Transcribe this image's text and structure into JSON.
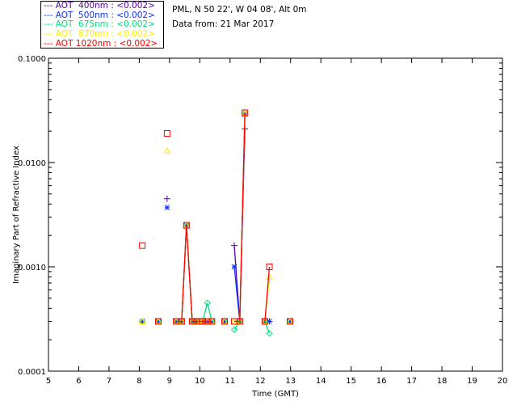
{
  "chart_data": {
    "type": "scatter",
    "title_lines": [
      "PML, N 50 22', W 04 08', Alt 0m",
      "Data from: 21 Mar 2017"
    ],
    "xlabel": "Time (GMT)",
    "ylabel": "Imaginary Part of Refractive Index",
    "xlim": [
      5,
      20
    ],
    "ylim": [
      0.0001,
      0.1
    ],
    "yscale": "log",
    "xticks": [
      "5",
      "6",
      "7",
      "8",
      "9",
      "10",
      "11",
      "12",
      "13",
      "14",
      "15",
      "16",
      "17",
      "18",
      "19",
      "20"
    ],
    "yticks": [
      "0.0001",
      "0.0010",
      "0.0100",
      "0.1000"
    ],
    "legend_placement": "top-left outside",
    "series": [
      {
        "name": "AOT  400nm : <0.002>",
        "color": "#5500aa",
        "marker": "plus",
        "points": [
          [
            8.1,
            0.0003
          ],
          [
            8.63,
            0.0003
          ],
          [
            8.92,
            0.0045
          ],
          [
            9.22,
            0.0003
          ],
          [
            9.4,
            0.0003
          ],
          [
            9.56,
            0.0025
          ],
          [
            9.75,
            0.0003
          ],
          [
            9.9,
            0.0003
          ],
          [
            10.0,
            0.0003
          ],
          [
            10.1,
            0.0003
          ],
          [
            10.25,
            0.0003
          ],
          [
            10.4,
            0.0003
          ],
          [
            10.82,
            0.0003
          ],
          [
            11.14,
            0.0016
          ],
          [
            11.32,
            0.0003
          ],
          [
            11.49,
            0.021
          ],
          [
            12.15,
            0.0003
          ],
          [
            12.3,
            0.0003
          ],
          [
            12.98,
            0.0003
          ]
        ]
      },
      {
        "name": "AOT  500nm : <0.002>",
        "color": "#1030ff",
        "marker": "star",
        "points": [
          [
            8.1,
            0.0003
          ],
          [
            8.63,
            0.0003
          ],
          [
            8.92,
            0.0037
          ],
          [
            9.22,
            0.0003
          ],
          [
            9.4,
            0.0003
          ],
          [
            9.56,
            0.0025
          ],
          [
            9.75,
            0.0003
          ],
          [
            9.9,
            0.0003
          ],
          [
            10.0,
            0.0003
          ],
          [
            10.1,
            0.0003
          ],
          [
            10.25,
            0.0003
          ],
          [
            10.4,
            0.0003
          ],
          [
            10.82,
            0.0003
          ],
          [
            11.14,
            0.001
          ],
          [
            11.32,
            0.0003
          ],
          [
            11.49,
            0.029
          ],
          [
            12.15,
            0.0003
          ],
          [
            12.3,
            0.0003
          ],
          [
            12.98,
            0.0003
          ]
        ]
      },
      {
        "name": "AOT  675nm : <0.002>",
        "color": "#00e080",
        "marker": "diamond",
        "points": [
          [
            8.1,
            0.0003
          ],
          [
            8.63,
            0.0003
          ],
          [
            9.22,
            0.0003
          ],
          [
            9.4,
            0.0003
          ],
          [
            9.56,
            0.0025
          ],
          [
            9.75,
            0.0003
          ],
          [
            9.9,
            0.0003
          ],
          [
            10.0,
            0.0003
          ],
          [
            10.1,
            0.0003
          ],
          [
            10.25,
            0.00045
          ],
          [
            10.4,
            0.0003
          ],
          [
            10.82,
            0.0003
          ],
          [
            11.14,
            0.00025
          ],
          [
            11.32,
            0.0003
          ],
          [
            11.49,
            0.03
          ],
          [
            12.15,
            0.0003
          ],
          [
            12.3,
            0.00023
          ],
          [
            12.98,
            0.0003
          ]
        ]
      },
      {
        "name": "AOT  870nm : <0.002>",
        "color": "#ffee00",
        "marker": "triangle",
        "points": [
          [
            8.1,
            0.0003
          ],
          [
            8.63,
            0.0003
          ],
          [
            8.92,
            0.013
          ],
          [
            9.22,
            0.0003
          ],
          [
            9.4,
            0.0003
          ],
          [
            9.56,
            0.0025
          ],
          [
            9.75,
            0.0003
          ],
          [
            9.9,
            0.0003
          ],
          [
            10.0,
            0.0003
          ],
          [
            10.1,
            0.0003
          ],
          [
            10.25,
            0.0003
          ],
          [
            10.4,
            0.0003
          ],
          [
            10.82,
            0.0003
          ],
          [
            11.14,
            0.0003
          ],
          [
            11.32,
            0.0003
          ],
          [
            11.49,
            0.03
          ],
          [
            12.15,
            0.0003
          ],
          [
            12.3,
            0.0008
          ],
          [
            12.98,
            0.0003
          ]
        ]
      },
      {
        "name": "AOT 1020nm : <0.002>",
        "color": "#ff0000",
        "marker": "square",
        "points": [
          [
            8.1,
            0.0016
          ],
          [
            8.63,
            0.0003
          ],
          [
            8.92,
            0.019
          ],
          [
            9.22,
            0.0003
          ],
          [
            9.4,
            0.0003
          ],
          [
            9.56,
            0.0025
          ],
          [
            9.75,
            0.0003
          ],
          [
            9.9,
            0.0003
          ],
          [
            10.0,
            0.0003
          ],
          [
            10.1,
            0.0003
          ],
          [
            10.25,
            0.0003
          ],
          [
            10.4,
            0.0003
          ],
          [
            10.82,
            0.0003
          ],
          [
            11.14,
            0.0003
          ],
          [
            11.32,
            0.0003
          ],
          [
            11.49,
            0.03
          ],
          [
            12.15,
            0.0003
          ],
          [
            12.3,
            0.001
          ],
          [
            12.98,
            0.0003
          ]
        ]
      }
    ]
  }
}
